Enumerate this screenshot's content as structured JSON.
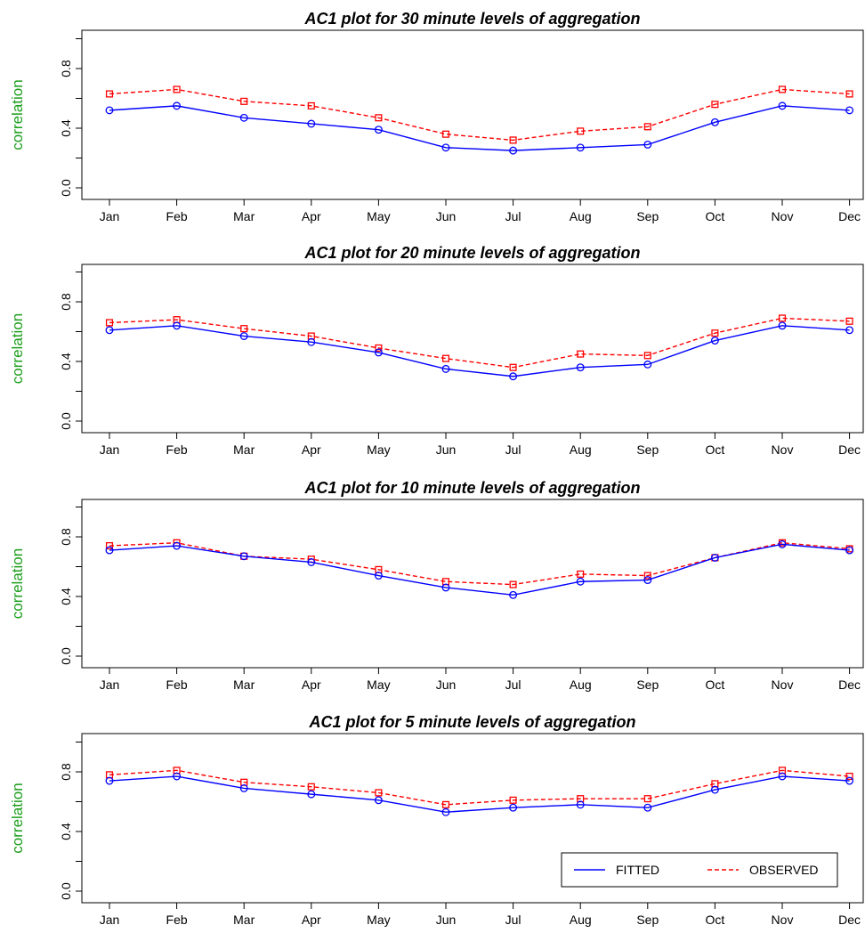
{
  "colors": {
    "fitted": "#0000ff",
    "observed": "#ff0000",
    "ylabel": "#1a9e1a",
    "axis": "#000000"
  },
  "legend": {
    "fitted_label": "FITTED",
    "observed_label": "OBSERVED",
    "position": "bottom-right of last panel"
  },
  "chart_data": [
    {
      "type": "line",
      "title": "AC1 plot for 30 minute levels of aggregation",
      "xlabel": "",
      "ylabel": "correlation",
      "categories": [
        "Jan",
        "Feb",
        "Mar",
        "Apr",
        "May",
        "Jun",
        "Jul",
        "Aug",
        "Sep",
        "Oct",
        "Nov",
        "Dec"
      ],
      "yticks": [
        "0.0",
        "0.4",
        "0.8"
      ],
      "ylim": [
        0,
        1.0
      ],
      "grid": false,
      "series": [
        {
          "name": "FITTED",
          "style": "solid",
          "marker": "circle",
          "values": [
            0.52,
            0.55,
            0.47,
            0.43,
            0.39,
            0.27,
            0.25,
            0.27,
            0.29,
            0.44,
            0.55,
            0.52
          ]
        },
        {
          "name": "OBSERVED",
          "style": "dashed",
          "marker": "square",
          "values": [
            0.63,
            0.66,
            0.58,
            0.55,
            0.47,
            0.36,
            0.32,
            0.38,
            0.41,
            0.56,
            0.66,
            0.63
          ]
        }
      ]
    },
    {
      "type": "line",
      "title": "AC1 plot for 20 minute levels of aggregation",
      "xlabel": "",
      "ylabel": "correlation",
      "categories": [
        "Jan",
        "Feb",
        "Mar",
        "Apr",
        "May",
        "Jun",
        "Jul",
        "Aug",
        "Sep",
        "Oct",
        "Nov",
        "Dec"
      ],
      "yticks": [
        "0.0",
        "0.4",
        "0.8"
      ],
      "ylim": [
        0,
        1.0
      ],
      "grid": false,
      "series": [
        {
          "name": "FITTED",
          "style": "solid",
          "marker": "circle",
          "values": [
            0.61,
            0.64,
            0.57,
            0.53,
            0.46,
            0.35,
            0.3,
            0.36,
            0.38,
            0.54,
            0.64,
            0.61
          ]
        },
        {
          "name": "OBSERVED",
          "style": "dashed",
          "marker": "square",
          "values": [
            0.66,
            0.68,
            0.62,
            0.57,
            0.49,
            0.42,
            0.36,
            0.45,
            0.44,
            0.59,
            0.69,
            0.67
          ]
        }
      ]
    },
    {
      "type": "line",
      "title": "AC1 plot for 10 minute levels of aggregation",
      "xlabel": "",
      "ylabel": "correlation",
      "categories": [
        "Jan",
        "Feb",
        "Mar",
        "Apr",
        "May",
        "Jun",
        "Jul",
        "Aug",
        "Sep",
        "Oct",
        "Nov",
        "Dec"
      ],
      "yticks": [
        "0.0",
        "0.4",
        "0.8"
      ],
      "ylim": [
        0,
        1.0
      ],
      "grid": false,
      "series": [
        {
          "name": "FITTED",
          "style": "solid",
          "marker": "circle",
          "values": [
            0.71,
            0.74,
            0.67,
            0.63,
            0.54,
            0.46,
            0.41,
            0.5,
            0.51,
            0.66,
            0.75,
            0.71
          ]
        },
        {
          "name": "OBSERVED",
          "style": "dashed",
          "marker": "square",
          "values": [
            0.74,
            0.76,
            0.67,
            0.65,
            0.58,
            0.5,
            0.48,
            0.55,
            0.54,
            0.66,
            0.76,
            0.72
          ]
        }
      ]
    },
    {
      "type": "line",
      "title": "AC1 plot for 5 minute levels of aggregation",
      "xlabel": "",
      "ylabel": "correlation",
      "categories": [
        "Jan",
        "Feb",
        "Mar",
        "Apr",
        "May",
        "Jun",
        "Jul",
        "Aug",
        "Sep",
        "Oct",
        "Nov",
        "Dec"
      ],
      "yticks": [
        "0.0",
        "0.4",
        "0.8"
      ],
      "ylim": [
        0,
        1.0
      ],
      "grid": false,
      "series": [
        {
          "name": "FITTED",
          "style": "solid",
          "marker": "circle",
          "values": [
            0.74,
            0.77,
            0.69,
            0.65,
            0.61,
            0.53,
            0.56,
            0.58,
            0.56,
            0.68,
            0.77,
            0.74
          ]
        },
        {
          "name": "OBSERVED",
          "style": "dashed",
          "marker": "square",
          "values": [
            0.78,
            0.81,
            0.73,
            0.7,
            0.66,
            0.58,
            0.61,
            0.62,
            0.62,
            0.72,
            0.81,
            0.77
          ]
        }
      ]
    }
  ]
}
